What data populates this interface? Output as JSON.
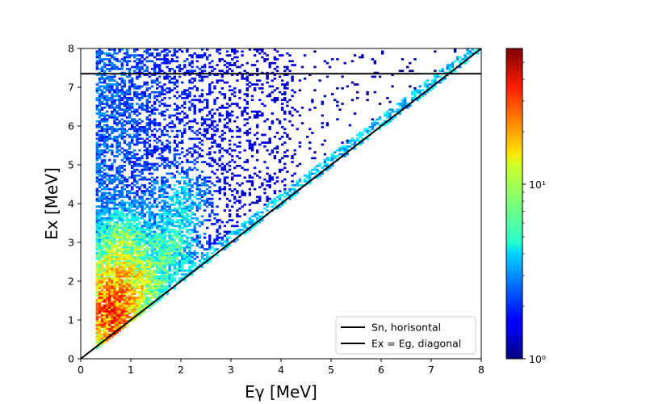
{
  "chart_data": {
    "type": "heatmap",
    "title": "",
    "xlabel": "Eγ [MeV]",
    "ylabel": "Ex [MeV]",
    "xlim": [
      0,
      8
    ],
    "ylim": [
      0,
      8
    ],
    "x_ticks": [
      "0",
      "1",
      "2",
      "3",
      "4",
      "5",
      "6",
      "7",
      "8"
    ],
    "y_ticks": [
      "0",
      "1",
      "2",
      "3",
      "4",
      "5",
      "6",
      "7",
      "8"
    ],
    "grid": false,
    "legend_position": "lower-right",
    "colormap": "jet",
    "color_scale": "log",
    "colorbar_range": [
      1,
      60
    ],
    "colorbar_ticks": [
      {
        "value": 1,
        "label": "10⁰"
      },
      {
        "value": 10,
        "label": "10¹"
      }
    ],
    "lines": [
      {
        "name": "Sn, horisontal",
        "x": [
          0,
          8
        ],
        "y": [
          7.35,
          7.35
        ],
        "color": "#000000"
      },
      {
        "name": "Ex = Eg, diagonal",
        "x": [
          0,
          8
        ],
        "y": [
          0,
          8
        ],
        "color": "#000000"
      }
    ],
    "hotspots": [
      {
        "x": 0.5,
        "y": 1.2,
        "value": 20
      },
      {
        "x": 0.7,
        "y": 0.8,
        "value": 15
      },
      {
        "x": 0.6,
        "y": 2.0,
        "value": 12
      },
      {
        "x": 1.2,
        "y": 1.9,
        "value": 10
      },
      {
        "x": 0.8,
        "y": 3.0,
        "value": 7
      },
      {
        "x": 1.8,
        "y": 2.8,
        "value": 5
      },
      {
        "x": 2.0,
        "y": 4.0,
        "value": 3
      }
    ]
  }
}
